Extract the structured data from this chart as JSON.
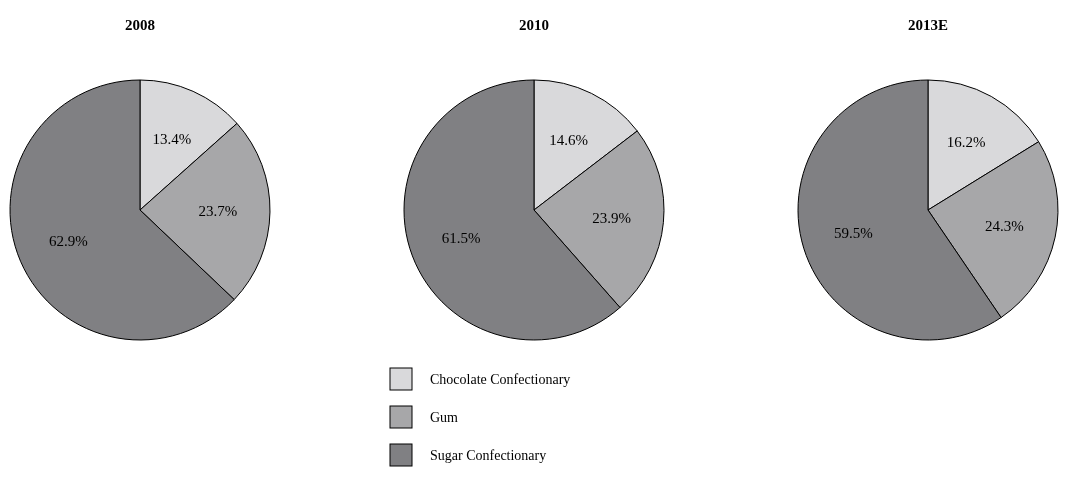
{
  "chart_data": [
    {
      "type": "pie",
      "title": "2008",
      "categories": [
        null,
        null,
        null
      ],
      "values": [
        13.4,
        23.7,
        62.9
      ],
      "value_labels": [
        "13.4%",
        "23.7%",
        "62.9%"
      ],
      "colors": [
        "#d9d9db",
        "#a7a7a9",
        "#808083"
      ]
    },
    {
      "type": "pie",
      "title": "2010",
      "categories": [
        "Chocolate Confectionary",
        "Gum",
        "Sugar Confectionary"
      ],
      "values": [
        14.6,
        23.9,
        61.5
      ],
      "value_labels": [
        "14.6%",
        "23.9%",
        "61.5%"
      ],
      "colors": [
        "#d9d9db",
        "#a7a7a9",
        "#808083"
      ],
      "legend": "bottom"
    },
    {
      "type": "pie",
      "title": "2013E",
      "categories": [
        null,
        null,
        null
      ],
      "values": [
        16.2,
        24.3,
        59.5
      ],
      "value_labels": [
        "16.2%",
        "24.3%",
        "59.5%"
      ],
      "colors": [
        "#d9d9db",
        "#a7a7a9",
        "#808083"
      ]
    }
  ]
}
